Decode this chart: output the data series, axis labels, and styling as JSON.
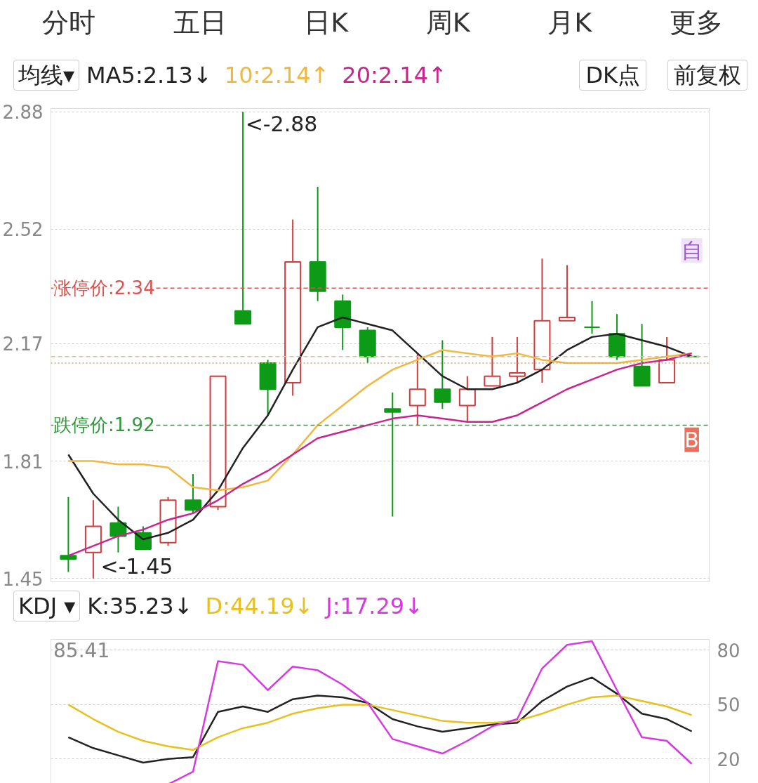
{
  "chart_data": [
    {
      "type": "candlestick",
      "legend_title": "均线▾",
      "legend": "top",
      "grid": "y",
      "tick_labels": "y",
      "categories": [
        null,
        null,
        null,
        null,
        null,
        null,
        null,
        null,
        null,
        null,
        null,
        null,
        null,
        null,
        null,
        null,
        null,
        null,
        null,
        null,
        null,
        null,
        null,
        null,
        null,
        null
      ],
      "ohlc": [
        [
          1.52,
          1.7,
          1.47,
          1.51
        ],
        [
          1.53,
          1.69,
          1.45,
          1.61
        ],
        [
          1.62,
          1.67,
          1.53,
          1.58
        ],
        [
          1.59,
          1.61,
          1.54,
          1.54
        ],
        [
          1.56,
          1.7,
          1.55,
          1.69
        ],
        [
          1.69,
          1.77,
          1.65,
          1.66
        ],
        [
          1.67,
          2.07,
          1.66,
          2.07
        ],
        [
          2.27,
          2.88,
          2.23,
          2.23
        ],
        [
          2.11,
          2.12,
          1.95,
          2.03
        ],
        [
          2.05,
          2.55,
          2.01,
          2.42
        ],
        [
          2.42,
          2.65,
          2.3,
          2.33
        ],
        [
          2.3,
          2.32,
          2.15,
          2.22
        ],
        [
          2.21,
          2.22,
          2.11,
          2.13
        ],
        [
          1.97,
          2.02,
          1.64,
          1.96
        ],
        [
          1.98,
          2.14,
          1.92,
          2.03
        ],
        [
          2.03,
          2.18,
          1.97,
          1.99
        ],
        [
          1.98,
          2.07,
          1.93,
          2.03
        ],
        [
          2.04,
          2.19,
          2.04,
          2.07
        ],
        [
          2.07,
          2.19,
          2.05,
          2.08
        ],
        [
          2.09,
          2.43,
          2.05,
          2.24
        ],
        [
          2.24,
          2.41,
          2.24,
          2.25
        ],
        [
          2.22,
          2.3,
          2.2,
          2.22
        ],
        [
          2.2,
          2.26,
          2.12,
          2.13
        ],
        [
          2.1,
          2.23,
          2.04,
          2.04
        ],
        [
          2.05,
          2.19,
          2.05,
          2.12
        ],
        [
          2.13,
          2.13,
          2.13,
          2.13
        ]
      ],
      "series": [
        {
          "name": "MA5:2.13↓",
          "type": "line",
          "color": "#222222",
          "values": [
            1.83,
            1.71,
            1.63,
            1.57,
            1.59,
            1.63,
            1.72,
            1.85,
            1.95,
            2.09,
            2.22,
            2.25,
            2.23,
            2.21,
            2.14,
            2.07,
            2.03,
            2.03,
            2.05,
            2.09,
            2.15,
            2.19,
            2.2,
            2.18,
            2.16,
            2.13
          ]
        },
        {
          "name": "10:2.14↑",
          "type": "line",
          "color": "#f0b840",
          "values": [
            1.81,
            1.81,
            1.8,
            1.8,
            1.79,
            1.73,
            1.72,
            1.73,
            1.75,
            1.83,
            1.92,
            1.98,
            2.04,
            2.09,
            2.12,
            2.15,
            2.14,
            2.13,
            2.14,
            2.12,
            2.11,
            2.11,
            2.11,
            2.12,
            2.13,
            2.14
          ]
        },
        {
          "name": "20:2.14↑",
          "type": "line",
          "color": "#c8268e",
          "values": [
            1.52,
            1.55,
            1.58,
            1.6,
            1.63,
            1.65,
            1.69,
            1.74,
            1.78,
            1.83,
            1.88,
            1.9,
            1.92,
            1.94,
            1.95,
            1.94,
            1.93,
            1.93,
            1.95,
            1.99,
            2.03,
            2.06,
            2.09,
            2.11,
            2.12,
            2.14
          ]
        }
      ],
      "ylim": [
        1.44,
        2.89
      ],
      "yticks": [
        2.88,
        2.52,
        2.17,
        1.81,
        1.45
      ],
      "ref_lines": [
        {
          "axis": "y",
          "value": 2.34,
          "label": "涨停价:2.34",
          "color": "#d9534f",
          "line_style": "dashed"
        },
        {
          "axis": "y",
          "value": 1.92,
          "label": "跌停价:1.92",
          "color": "#2e9a3a",
          "line_style": "dashed"
        },
        {
          "axis": "y",
          "value": 2.13,
          "color": "#e8b89a",
          "line_style": "dashed"
        },
        {
          "axis": "y",
          "value": 2.11,
          "color": "#d9a070",
          "line_style": "dotted"
        }
      ],
      "annotations": [
        "分时",
        "五日",
        "日K",
        "周K",
        "月K",
        "更多",
        "DK点",
        "前复权",
        "<-2.88",
        "<-1.45",
        "自",
        "B"
      ]
    },
    {
      "type": "line",
      "legend_title": "KDJ ▾",
      "legend": "top",
      "grid": "y",
      "tick_labels": "y",
      "categories": [
        null,
        null,
        null,
        null,
        null,
        null,
        null,
        null,
        null,
        null,
        null,
        null,
        null,
        null,
        null,
        null,
        null,
        null,
        null,
        null,
        null,
        null,
        null,
        null,
        null,
        null
      ],
      "series": [
        {
          "name": "K:35.23↓",
          "color": "#222222",
          "values": [
            32,
            26,
            22,
            18,
            20,
            21,
            46,
            49,
            46,
            53,
            55,
            54,
            51,
            42,
            38,
            35,
            37,
            39,
            40,
            52,
            60,
            65,
            56,
            45,
            42,
            35.23
          ]
        },
        {
          "name": "D:44.19↓",
          "color": "#e8c020",
          "values": [
            50,
            42,
            35,
            30,
            27,
            25,
            32,
            37,
            40,
            45,
            48,
            50,
            50,
            47,
            44,
            41,
            40,
            40,
            41,
            45,
            50,
            54,
            55,
            52,
            49,
            44.19
          ]
        },
        {
          "name": "J:17.29↓",
          "color": "#d63ae0",
          "values": [
            null,
            null,
            null,
            null,
            6,
            13,
            74,
            72,
            58,
            71,
            69,
            61,
            51,
            31,
            27,
            23,
            30,
            38,
            42,
            70,
            83,
            85,
            58,
            32,
            30,
            17.29
          ]
        }
      ],
      "ylim": [
        5,
        86
      ],
      "yticks": [
        20,
        50,
        80
      ],
      "annotations": [
        "85.41"
      ]
    }
  ]
}
